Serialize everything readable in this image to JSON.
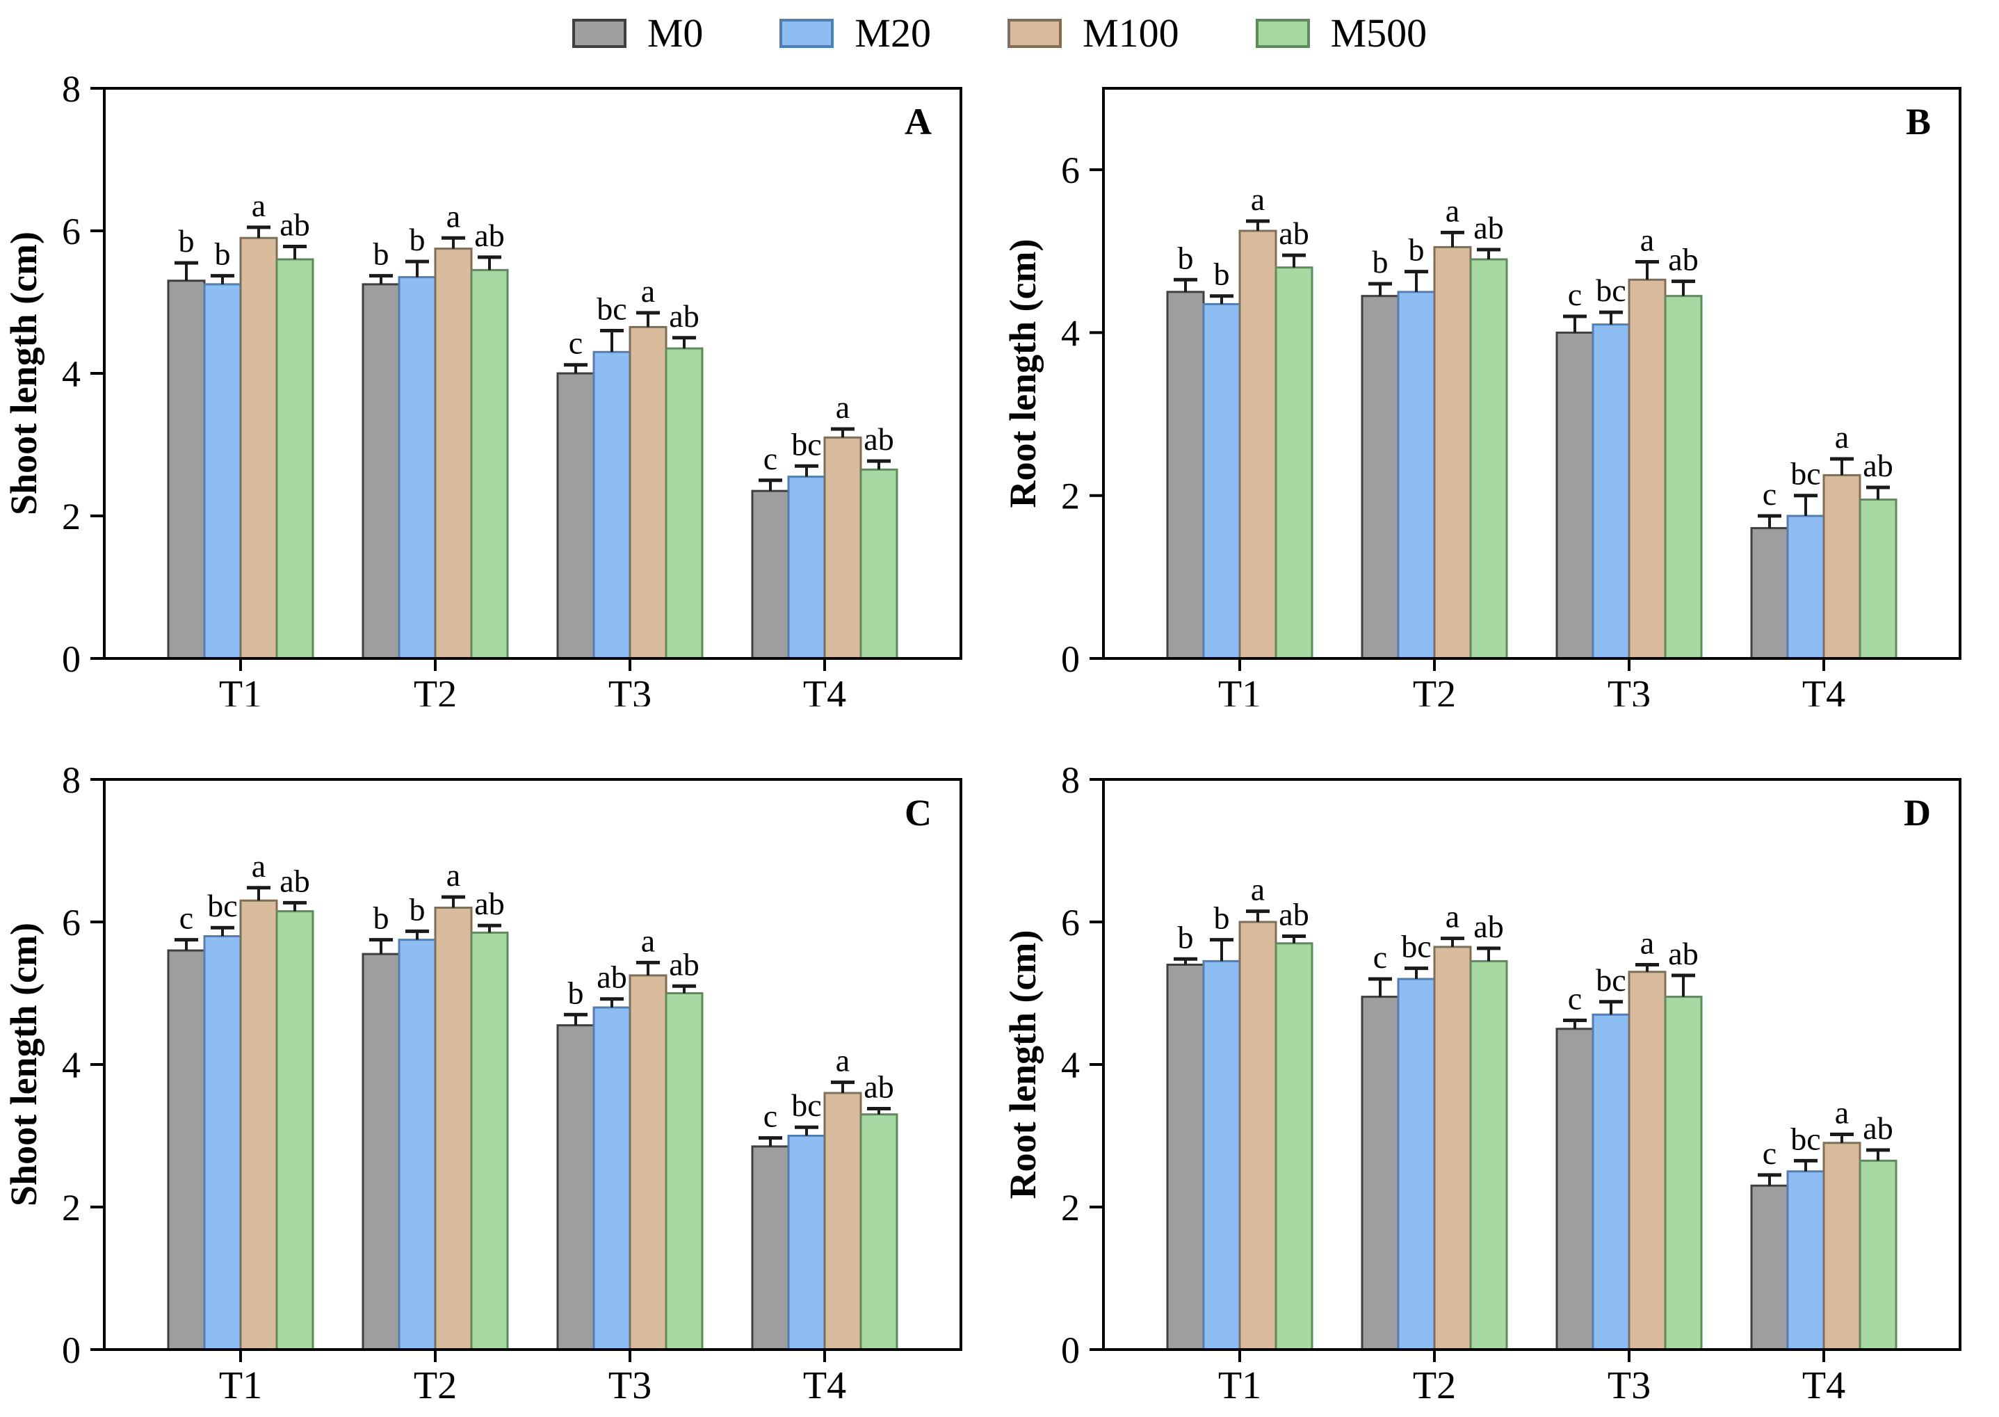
{
  "page": {
    "background": "#ffffff",
    "axis_color": "#000000",
    "error_bar_color": "#1a1a1a"
  },
  "legend": {
    "items": [
      {
        "label": "M0",
        "fill": "#9e9ea1",
        "edge": "#3f3f3f"
      },
      {
        "label": "M20",
        "fill": "#8dbdf2",
        "edge": "#4f7fb5"
      },
      {
        "label": "M100",
        "fill": "#d9bb9d",
        "edge": "#7f6f57"
      },
      {
        "label": "M500",
        "fill": "#a7d8a1",
        "edge": "#5f8a5e"
      }
    ]
  },
  "chart_data": [
    {
      "id": "A",
      "type": "bar",
      "panel_label": "A",
      "ylabel": "Shoot length (cm)",
      "xlabel": "",
      "ylim": [
        0,
        8
      ],
      "yticks": [
        0,
        2,
        4,
        6,
        8
      ],
      "categories": [
        "T1",
        "T2",
        "T3",
        "T4"
      ],
      "legend_position": "top",
      "grid": false,
      "series": [
        {
          "name": "M0",
          "values": [
            5.3,
            5.25,
            4.0,
            2.35
          ],
          "errors": [
            0.25,
            0.12,
            0.12,
            0.15
          ],
          "letters": [
            "b",
            "b",
            "c",
            "c"
          ]
        },
        {
          "name": "M20",
          "values": [
            5.25,
            5.35,
            4.3,
            2.55
          ],
          "errors": [
            0.12,
            0.22,
            0.3,
            0.15
          ],
          "letters": [
            "b",
            "b",
            "bc",
            "bc"
          ]
        },
        {
          "name": "M100",
          "values": [
            5.9,
            5.75,
            4.65,
            3.1
          ],
          "errors": [
            0.15,
            0.15,
            0.2,
            0.12
          ],
          "letters": [
            "a",
            "a",
            "a",
            "a"
          ]
        },
        {
          "name": "M500",
          "values": [
            5.6,
            5.45,
            4.35,
            2.65
          ],
          "errors": [
            0.18,
            0.18,
            0.15,
            0.12
          ],
          "letters": [
            "ab",
            "ab",
            "ab",
            "ab"
          ]
        }
      ]
    },
    {
      "id": "B",
      "type": "bar",
      "panel_label": "B",
      "ylabel": "Root length (cm)",
      "xlabel": "",
      "ylim": [
        0,
        7
      ],
      "yticks": [
        0,
        2,
        4,
        6
      ],
      "categories": [
        "T1",
        "T2",
        "T3",
        "T4"
      ],
      "legend_position": "top",
      "grid": false,
      "series": [
        {
          "name": "M0",
          "values": [
            4.5,
            4.45,
            4.0,
            1.6
          ],
          "errors": [
            0.15,
            0.15,
            0.2,
            0.15
          ],
          "letters": [
            "b",
            "b",
            "c",
            "c"
          ]
        },
        {
          "name": "M20",
          "values": [
            4.35,
            4.5,
            4.1,
            1.75
          ],
          "errors": [
            0.1,
            0.25,
            0.15,
            0.25
          ],
          "letters": [
            "b",
            "b",
            "bc",
            "bc"
          ]
        },
        {
          "name": "M100",
          "values": [
            5.25,
            5.05,
            4.65,
            2.25
          ],
          "errors": [
            0.12,
            0.18,
            0.22,
            0.2
          ],
          "letters": [
            "a",
            "a",
            "a",
            "a"
          ]
        },
        {
          "name": "M500",
          "values": [
            4.8,
            4.9,
            4.45,
            1.95
          ],
          "errors": [
            0.15,
            0.12,
            0.18,
            0.15
          ],
          "letters": [
            "ab",
            "ab",
            "ab",
            "ab"
          ]
        }
      ]
    },
    {
      "id": "C",
      "type": "bar",
      "panel_label": "C",
      "ylabel": "Shoot length (cm)",
      "xlabel": "",
      "ylim": [
        0,
        8
      ],
      "yticks": [
        0,
        2,
        4,
        6,
        8
      ],
      "categories": [
        "T1",
        "T2",
        "T3",
        "T4"
      ],
      "legend_position": "top",
      "grid": false,
      "series": [
        {
          "name": "M0",
          "values": [
            5.6,
            5.55,
            4.55,
            2.85
          ],
          "errors": [
            0.15,
            0.2,
            0.15,
            0.12
          ],
          "letters": [
            "c",
            "b",
            "b",
            "c"
          ]
        },
        {
          "name": "M20",
          "values": [
            5.8,
            5.75,
            4.8,
            3.0
          ],
          "errors": [
            0.12,
            0.12,
            0.12,
            0.12
          ],
          "letters": [
            "bc",
            "b",
            "ab",
            "bc"
          ]
        },
        {
          "name": "M100",
          "values": [
            6.3,
            6.2,
            5.25,
            3.6
          ],
          "errors": [
            0.18,
            0.15,
            0.18,
            0.15
          ],
          "letters": [
            "a",
            "a",
            "a",
            "a"
          ]
        },
        {
          "name": "M500",
          "values": [
            6.15,
            5.85,
            5.0,
            3.3
          ],
          "errors": [
            0.12,
            0.1,
            0.1,
            0.08
          ],
          "letters": [
            "ab",
            "ab",
            "ab",
            "ab"
          ]
        }
      ]
    },
    {
      "id": "D",
      "type": "bar",
      "panel_label": "D",
      "ylabel": "Root length (cm)",
      "xlabel": "",
      "ylim": [
        0,
        8
      ],
      "yticks": [
        0,
        2,
        4,
        6,
        8
      ],
      "categories": [
        "T1",
        "T2",
        "T3",
        "T4"
      ],
      "legend_position": "top",
      "grid": false,
      "series": [
        {
          "name": "M0",
          "values": [
            5.4,
            4.95,
            4.5,
            2.3
          ],
          "errors": [
            0.08,
            0.25,
            0.12,
            0.15
          ],
          "letters": [
            "b",
            "c",
            "c",
            "c"
          ]
        },
        {
          "name": "M20",
          "values": [
            5.45,
            5.2,
            4.7,
            2.5
          ],
          "errors": [
            0.3,
            0.15,
            0.18,
            0.15
          ],
          "letters": [
            "b",
            "bc",
            "bc",
            "bc"
          ]
        },
        {
          "name": "M100",
          "values": [
            6.0,
            5.65,
            5.3,
            2.9
          ],
          "errors": [
            0.15,
            0.12,
            0.1,
            0.12
          ],
          "letters": [
            "a",
            "a",
            "a",
            "a"
          ]
        },
        {
          "name": "M500",
          "values": [
            5.7,
            5.45,
            4.95,
            2.65
          ],
          "errors": [
            0.1,
            0.18,
            0.3,
            0.15
          ],
          "letters": [
            "ab",
            "ab",
            "ab",
            "ab"
          ]
        }
      ]
    }
  ]
}
